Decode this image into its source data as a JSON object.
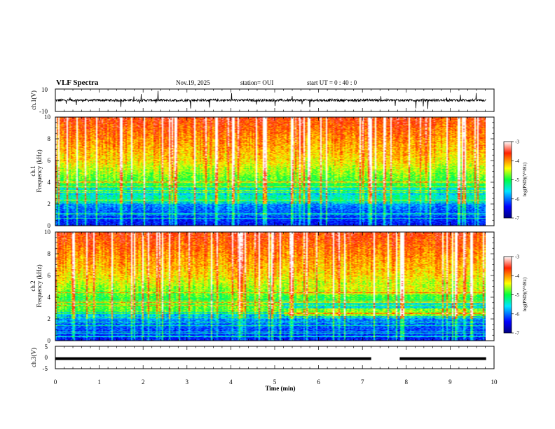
{
  "header": {
    "title": "VLF Spectra",
    "date": "Nov.19, 2025",
    "station": "station= OUI",
    "start": "start  UT =  0 : 40 : 0"
  },
  "chart_data": {
    "type": "heatmap",
    "x_axis": {
      "label": "Time  (min)",
      "range": [
        0,
        10
      ],
      "ticks": [
        "0",
        "1",
        "2",
        "3",
        "4",
        "5",
        "6",
        "7",
        "8",
        "9",
        "10"
      ]
    },
    "panels": [
      {
        "kind": "waveform",
        "ylabel": "ch.1(V)",
        "yticks": [
          "10",
          "-10"
        ],
        "ylim": [
          -10,
          10
        ]
      },
      {
        "kind": "spectrogram",
        "ylabel": "ch.1\nFrequency  (kHz)",
        "ylabel_line1": "ch.1",
        "ylabel_line2": "Frequency  (kHz)",
        "yticks": [
          "0",
          "2",
          "4",
          "6",
          "8",
          "10"
        ],
        "ylim": [
          0,
          10
        ],
        "colorbar": {
          "label": "log(PSD)(V²/Hz)",
          "ticks": [
            "-3",
            "-4",
            "-5",
            "-6",
            "-7"
          ],
          "range": [
            -7,
            -3
          ]
        }
      },
      {
        "kind": "spectrogram",
        "ylabel": "ch.2\nFrequency  (kHz)",
        "ylabel_line1": "ch.2",
        "ylabel_line2": "Frequency  (kHz)",
        "yticks": [
          "0",
          "2",
          "4",
          "6",
          "8",
          "10"
        ],
        "ylim": [
          0,
          10
        ],
        "colorbar": {
          "label": "log(PSD)(V²/Hz)",
          "ticks": [
            "-3",
            "-4",
            "-5",
            "-6",
            "-7"
          ],
          "range": [
            -7,
            -3
          ]
        }
      },
      {
        "kind": "waveform",
        "ylabel": "ch.3(V)",
        "yticks": [
          "5",
          "0",
          "-5"
        ],
        "ylim": [
          -5,
          5
        ],
        "level_v": -0.5,
        "gap_minutes": [
          7.2,
          7.85
        ]
      }
    ]
  }
}
